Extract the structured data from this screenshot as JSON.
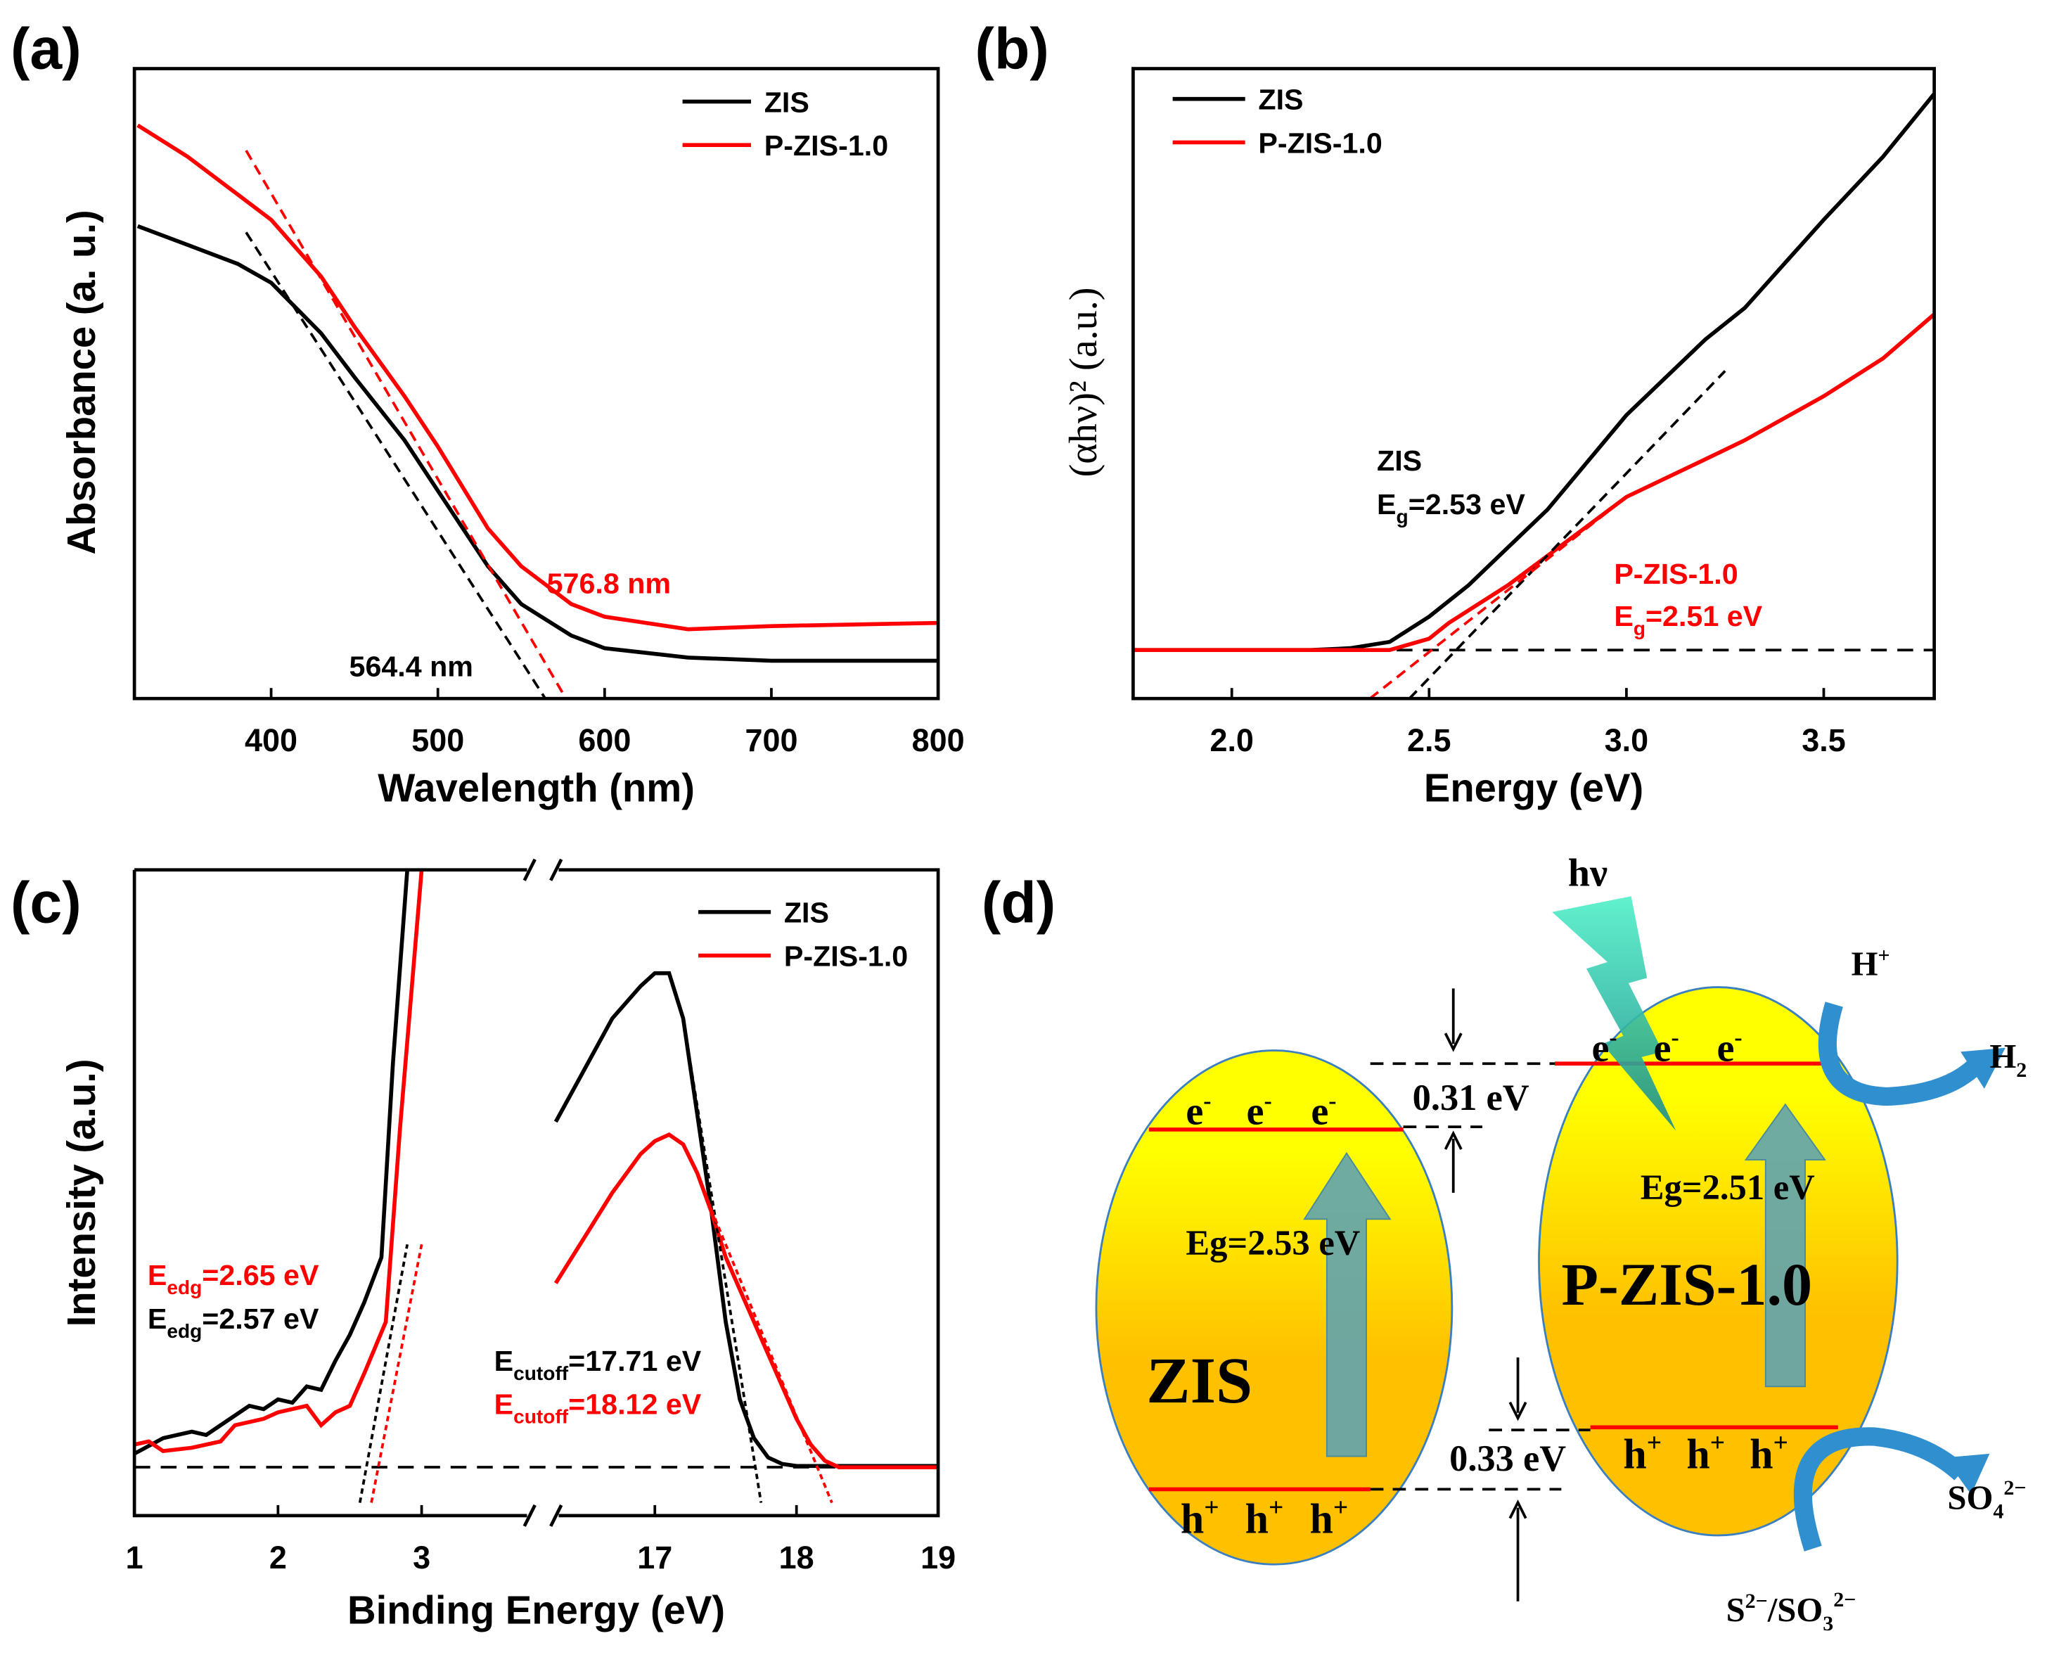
{
  "panels": {
    "a": "(a)",
    "b": "(b)",
    "c": "(c)",
    "d": "(d)"
  },
  "colors": {
    "zis": "#000000",
    "pzis": "#ff0000",
    "ellipse_top": "#ffff00",
    "ellipse_bottom": "#ffc000",
    "arrow": "#5fa3b0",
    "curve_arrow": "#2f8fcf",
    "bolt": "#3ee0b0"
  },
  "chart_data": [
    {
      "type": "line",
      "title": "",
      "xlabel": "Wavelength (nm)",
      "ylabel": "Absorbance (a. u.)",
      "xlim": [
        318,
        800
      ],
      "ylim": [
        0,
        1
      ],
      "xticks": [
        400,
        500,
        600,
        700,
        800
      ],
      "legend": {
        "position": "top-right",
        "entries": [
          "ZIS",
          "P-ZIS-1.0"
        ]
      },
      "series": [
        {
          "name": "ZIS",
          "x": [
            320,
            350,
            380,
            400,
            430,
            450,
            480,
            500,
            530,
            550,
            580,
            600,
            650,
            700,
            800
          ],
          "y": [
            0.75,
            0.72,
            0.69,
            0.66,
            0.58,
            0.51,
            0.41,
            0.33,
            0.21,
            0.15,
            0.1,
            0.08,
            0.065,
            0.06,
            0.06
          ]
        },
        {
          "name": "P-ZIS-1.0",
          "x": [
            320,
            350,
            380,
            400,
            430,
            450,
            480,
            500,
            530,
            550,
            580,
            600,
            650,
            700,
            800
          ],
          "y": [
            0.91,
            0.86,
            0.8,
            0.76,
            0.67,
            0.59,
            0.48,
            0.4,
            0.27,
            0.21,
            0.15,
            0.13,
            0.11,
            0.115,
            0.12
          ]
        }
      ],
      "fits": [
        {
          "series": "ZIS",
          "x": [
            385,
            564.4
          ],
          "y": [
            0.74,
            0
          ]
        },
        {
          "series": "P-ZIS-1.0",
          "x": [
            385,
            576.8
          ],
          "y": [
            0.87,
            0
          ]
        }
      ],
      "annotations": {
        "pzis": "576.8 nm",
        "zis": "564.4 nm"
      }
    },
    {
      "type": "line",
      "title": "",
      "xlabel": "Energy (eV)",
      "ylabel": "(αhν)² (a.u.)",
      "xlim": [
        1.75,
        3.78
      ],
      "ylim": [
        0,
        1
      ],
      "xticks": [
        2.0,
        2.5,
        3.0,
        3.5
      ],
      "legend": {
        "position": "top-left",
        "entries": [
          "ZIS",
          "P-ZIS-1.0"
        ]
      },
      "baseline": 0.077,
      "series": [
        {
          "name": "ZIS",
          "x": [
            1.75,
            2.2,
            2.3,
            2.4,
            2.5,
            2.6,
            2.7,
            2.8,
            3.0,
            3.2,
            3.3,
            3.5,
            3.65,
            3.78
          ],
          "y": [
            0.077,
            0.077,
            0.08,
            0.09,
            0.13,
            0.18,
            0.24,
            0.3,
            0.45,
            0.57,
            0.62,
            0.76,
            0.86,
            0.96
          ]
        },
        {
          "name": "P-ZIS-1.0",
          "x": [
            1.75,
            2.4,
            2.5,
            2.55,
            2.7,
            2.85,
            3.0,
            3.2,
            3.3,
            3.5,
            3.65,
            3.78
          ],
          "y": [
            0.077,
            0.077,
            0.095,
            0.12,
            0.18,
            0.25,
            0.32,
            0.38,
            0.41,
            0.48,
            0.54,
            0.61
          ]
        }
      ],
      "fits": [
        {
          "series": "ZIS",
          "x": [
            2.45,
            3.25
          ],
          "y": [
            0,
            0.52
          ]
        },
        {
          "series": "P-ZIS-1.0",
          "x": [
            2.35,
            3.0
          ],
          "y": [
            0,
            0.32
          ]
        }
      ],
      "annotations": {
        "zis_name": "ZIS",
        "zis_eg_prefix": "E",
        "zis_eg_sub": "g",
        "zis_eg_value": "=2.53 eV",
        "pzis_name": "P-ZIS-1.0",
        "pzis_eg_prefix": "E",
        "pzis_eg_sub": "g",
        "pzis_eg_value": "=2.51 eV"
      }
    },
    {
      "type": "line",
      "title": "",
      "xlabel": "Binding Energy (eV)",
      "ylabel": "Intensity (a.u.)",
      "xlim": [
        1,
        19
      ],
      "axis_break": [
        3.85,
        16.2
      ],
      "ylim": [
        0,
        1
      ],
      "xticks": [
        1,
        2,
        3,
        17,
        18,
        19
      ],
      "legend": {
        "position": "top-right",
        "entries": [
          "ZIS",
          "P-ZIS-1.0"
        ]
      },
      "baseline": 0.075,
      "series": [
        {
          "name": "ZIS",
          "x": [
            1.0,
            1.2,
            1.4,
            1.5,
            1.6,
            1.8,
            1.9,
            2.0,
            2.1,
            2.2,
            2.3,
            2.4,
            2.5,
            2.6,
            2.72,
            2.8,
            2.9
          ],
          "y": [
            0.096,
            0.12,
            0.13,
            0.125,
            0.14,
            0.17,
            0.165,
            0.18,
            0.175,
            0.2,
            0.195,
            0.24,
            0.28,
            0.33,
            0.4,
            0.7,
            1.0
          ],
          "segment": "low"
        },
        {
          "name": "P-ZIS-1.0",
          "x": [
            1.0,
            1.1,
            1.2,
            1.4,
            1.6,
            1.7,
            1.9,
            2.0,
            2.2,
            2.3,
            2.4,
            2.5,
            2.6,
            2.75,
            2.85,
            3.0
          ],
          "y": [
            0.11,
            0.115,
            0.1,
            0.105,
            0.115,
            0.14,
            0.15,
            0.16,
            0.17,
            0.14,
            0.16,
            0.17,
            0.22,
            0.3,
            0.6,
            1.0
          ],
          "segment": "low"
        },
        {
          "name": "ZIS",
          "x": [
            16.3,
            16.5,
            16.7,
            16.9,
            17.0,
            17.1,
            17.2,
            17.3,
            17.4,
            17.5,
            17.6,
            17.7,
            17.8,
            17.9,
            18.0,
            19.0
          ],
          "y": [
            0.61,
            0.69,
            0.77,
            0.82,
            0.84,
            0.84,
            0.77,
            0.62,
            0.47,
            0.3,
            0.18,
            0.12,
            0.09,
            0.08,
            0.077,
            0.077
          ],
          "segment": "high"
        },
        {
          "name": "P-ZIS-1.0",
          "x": [
            16.3,
            16.5,
            16.7,
            16.9,
            17.0,
            17.1,
            17.2,
            17.3,
            17.4,
            17.5,
            17.6,
            17.8,
            18.0,
            18.1,
            18.2,
            18.3,
            19.0
          ],
          "y": [
            0.36,
            0.43,
            0.5,
            0.56,
            0.58,
            0.59,
            0.575,
            0.53,
            0.47,
            0.4,
            0.35,
            0.25,
            0.15,
            0.11,
            0.085,
            0.075,
            0.075
          ],
          "segment": "high"
        }
      ],
      "fits": [
        {
          "series": "ZIS",
          "x": [
            2.57,
            2.9
          ],
          "y": [
            0.02,
            0.42
          ]
        },
        {
          "series": "P-ZIS-1.0",
          "x": [
            2.65,
            3.0
          ],
          "y": [
            0.02,
            0.42
          ]
        },
        {
          "series": "ZIS",
          "x": [
            17.2,
            17.75
          ],
          "y": [
            0.77,
            0.02
          ]
        },
        {
          "series": "P-ZIS-1.0",
          "x": [
            17.35,
            18.25
          ],
          "y": [
            0.5,
            0.02
          ]
        }
      ],
      "annotations": {
        "edg_red_prefix": "E",
        "edg_red_sub": "edg",
        "edg_red_value": "=2.65 eV",
        "edg_blk_prefix": "E",
        "edg_blk_sub": "edg",
        "edg_blk_value": "=2.57 eV",
        "cut_blk_prefix": "E",
        "cut_blk_sub": "cutoff",
        "cut_blk_value": "=17.71 eV",
        "cut_red_prefix": "E",
        "cut_red_sub": "cutoff",
        "cut_red_value": "=18.12 eV"
      }
    }
  ],
  "diagram": {
    "light": "hν",
    "electron": "e",
    "electron_sup": "-",
    "hole": "h",
    "hole_sup": "+",
    "zis_label": "ZIS",
    "zis_eg": "Eg=2.53 eV",
    "pzis_label": "P-ZIS-1.0",
    "pzis_eg": "Eg=2.51 eV",
    "cb_offset": "0.31 eV",
    "vb_offset": "0.33 eV",
    "h_plus": "H",
    "h_plus_sup": "+",
    "h2": "H",
    "h2_sub": "2",
    "so4": "SO",
    "so4_sub": "4",
    "so4_sup": "2−",
    "sacrificial_a": "S",
    "sacrificial_a_sup": "2−",
    "sacrificial_b": "/SO",
    "sacrificial_b_sub": "3",
    "sacrificial_b_sup": "2−"
  }
}
